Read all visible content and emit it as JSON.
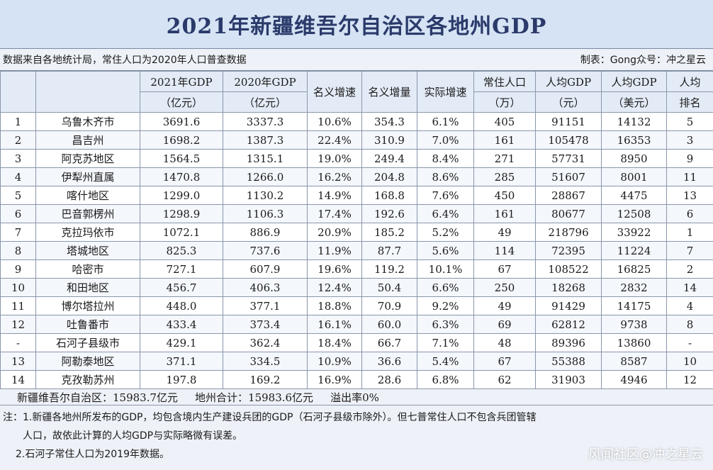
{
  "title": "2021年新疆维吾尔自治区各地州GDP",
  "meta": {
    "source": "数据来自各地统计局，常住人口为2020年人口普查数据",
    "author": "制表：Gong众号：冲之星云"
  },
  "headers": {
    "gdp2021_l1": "2021年GDP",
    "gdp2021_l2": "（亿元）",
    "gdp2020_l1": "2020年GDP",
    "gdp2020_l2": "（亿元）",
    "nominal_growth": "名义增速",
    "nominal_increase": "名义增量",
    "real_growth": "实际增速",
    "pop_l1": "常住人口",
    "pop_l2": "（万）",
    "pc_cny_l1": "人均GDP",
    "pc_cny_l2": "（元）",
    "pc_usd_l1": "人均GDP",
    "pc_usd_l2": "（美元）",
    "rank_l1": "人均",
    "rank_l2": "排名"
  },
  "rows": [
    [
      "1",
      "乌鲁木齐市",
      "3691.6",
      "3337.3",
      "10.6%",
      "354.3",
      "6.1%",
      "405",
      "91151",
      "14132",
      "5"
    ],
    [
      "2",
      "昌吉州",
      "1698.2",
      "1387.3",
      "22.4%",
      "310.9",
      "7.0%",
      "161",
      "105478",
      "16353",
      "3"
    ],
    [
      "3",
      "阿克苏地区",
      "1564.5",
      "1315.1",
      "19.0%",
      "249.4",
      "8.4%",
      "271",
      "57731",
      "8950",
      "9"
    ],
    [
      "4",
      "伊犁州直属",
      "1470.8",
      "1266.0",
      "16.2%",
      "204.8",
      "8.6%",
      "285",
      "51607",
      "8001",
      "11"
    ],
    [
      "5",
      "喀什地区",
      "1299.0",
      "1130.2",
      "14.9%",
      "168.8",
      "7.6%",
      "450",
      "28867",
      "4475",
      "13"
    ],
    [
      "6",
      "巴音郭楞州",
      "1298.9",
      "1106.3",
      "17.4%",
      "192.6",
      "6.4%",
      "161",
      "80677",
      "12508",
      "6"
    ],
    [
      "7",
      "克拉玛依市",
      "1072.1",
      "886.9",
      "20.9%",
      "185.2",
      "5.2%",
      "49",
      "218796",
      "33922",
      "1"
    ],
    [
      "8",
      "塔城地区",
      "825.3",
      "737.6",
      "11.9%",
      "87.7",
      "5.6%",
      "114",
      "72395",
      "11224",
      "7"
    ],
    [
      "9",
      "哈密市",
      "727.1",
      "607.9",
      "19.6%",
      "119.2",
      "10.1%",
      "67",
      "108522",
      "16825",
      "2"
    ],
    [
      "10",
      "和田地区",
      "456.7",
      "406.3",
      "12.4%",
      "50.4",
      "6.6%",
      "250",
      "18268",
      "2832",
      "14"
    ],
    [
      "11",
      "博尔塔拉州",
      "448.0",
      "377.1",
      "18.8%",
      "70.9",
      "9.2%",
      "49",
      "91429",
      "14175",
      "4"
    ],
    [
      "12",
      "吐鲁番市",
      "433.4",
      "373.4",
      "16.1%",
      "60.0",
      "6.3%",
      "69",
      "62812",
      "9738",
      "8"
    ],
    [
      "-",
      "石河子县级市",
      "429.1",
      "362.4",
      "18.4%",
      "66.7",
      "7.1%",
      "48",
      "89396",
      "13860",
      "-"
    ],
    [
      "13",
      "阿勒泰地区",
      "371.1",
      "334.5",
      "10.9%",
      "36.6",
      "5.4%",
      "67",
      "55388",
      "8587",
      "10"
    ],
    [
      "14",
      "克孜勒苏州",
      "197.8",
      "169.2",
      "16.9%",
      "28.6",
      "6.8%",
      "62",
      "31903",
      "4946",
      "12"
    ]
  ],
  "summary": {
    "region_total": "新疆维吾尔自治区：15983.7亿元",
    "prefecture_total": "地州合计：15983.6亿元",
    "overflow": "溢出率0%"
  },
  "notes": {
    "n1a": "注：1.新疆各地州所发布的GDP，均包含境内生产建设兵团的GDP（石河子县级市除外）。但七普常住人口不包含兵团管辖",
    "n1b": "人口，故依此计算的人均GDP与实际略微有误差。",
    "n2": "2.石河子常住人口为2019年数据。"
  },
  "watermark": "风闻社区@冲之星云"
}
